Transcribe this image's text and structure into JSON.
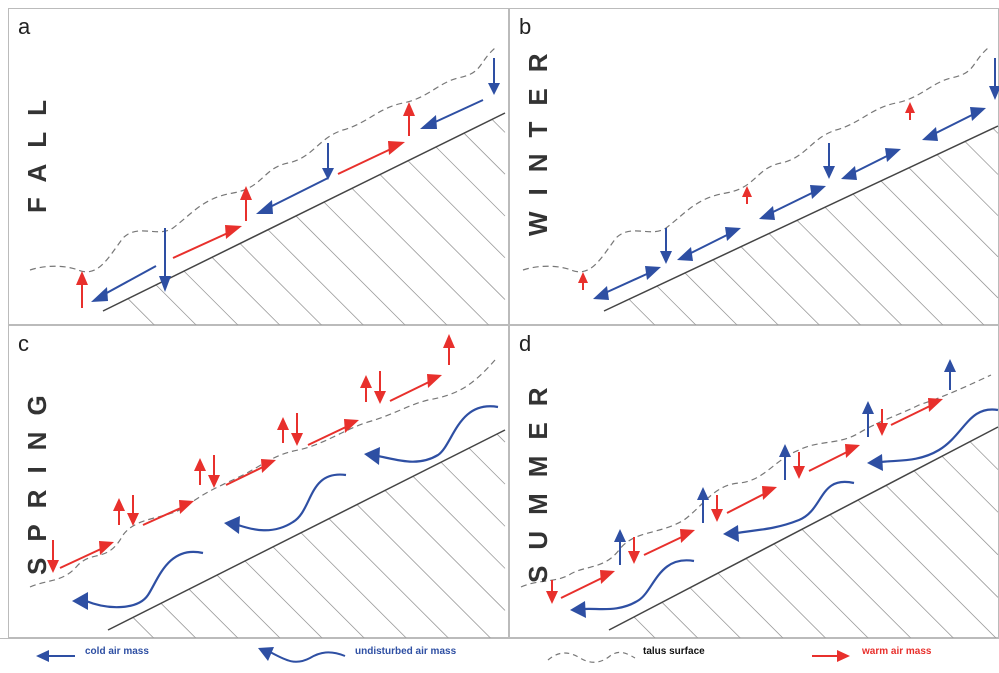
{
  "panels": [
    {
      "id": "a",
      "season": "FALL"
    },
    {
      "id": "b",
      "season": "WINTER"
    },
    {
      "id": "c",
      "season": "SPRING"
    },
    {
      "id": "d",
      "season": "SUMMER"
    }
  ],
  "legend": {
    "cold": "cold air mass",
    "undisturbed": "undisturbed air mass",
    "talus": "talus surface",
    "warm": "warm air mass"
  },
  "colors": {
    "cold": "#2e4fa3",
    "warm": "#e8302c",
    "talus": "#777777",
    "hatch": "#9a9a9a",
    "border": "#bbbbbb"
  }
}
